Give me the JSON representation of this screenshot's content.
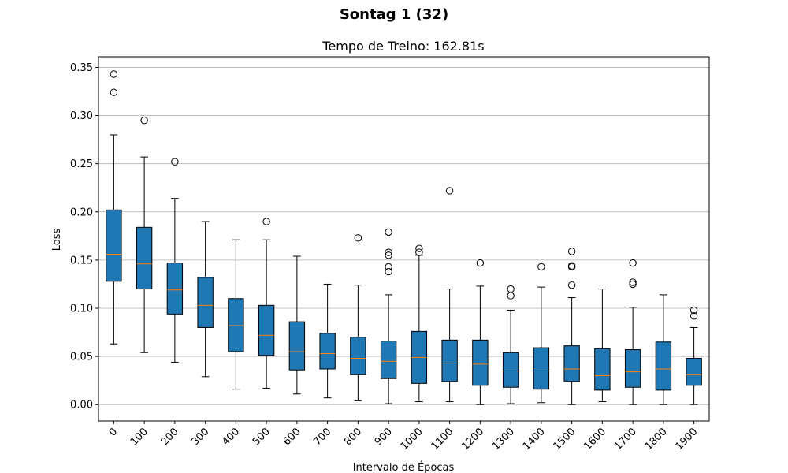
{
  "suptitle": "Sontag 1 (32)",
  "chart_data": {
    "type": "boxplot",
    "title": "Tempo de Treino: 162.81s",
    "xlabel": "Intervalo de Épocas",
    "ylabel": "Loss",
    "ylim": [
      -0.017,
      0.361
    ],
    "yticks": [
      "0.00",
      "0.05",
      "0.10",
      "0.15",
      "0.20",
      "0.25",
      "0.30",
      "0.35"
    ],
    "grid": "y",
    "colors": {
      "box": "#1f77b4",
      "median": "#ff7f0e",
      "edge": "#000000",
      "grid": "#b0b0b0"
    },
    "categories": [
      "0",
      "100",
      "200",
      "300",
      "400",
      "500",
      "600",
      "700",
      "800",
      "900",
      "1000",
      "1100",
      "1200",
      "1300",
      "1400",
      "1500",
      "1600",
      "1700",
      "1800",
      "1900"
    ],
    "boxes": [
      {
        "whislo": 0.063,
        "q1": 0.128,
        "med": 0.156,
        "q3": 0.202,
        "whishi": 0.28,
        "fliers": [
          0.343,
          0.324
        ]
      },
      {
        "whislo": 0.054,
        "q1": 0.12,
        "med": 0.146,
        "q3": 0.184,
        "whishi": 0.257,
        "fliers": [
          0.295
        ]
      },
      {
        "whislo": 0.044,
        "q1": 0.094,
        "med": 0.119,
        "q3": 0.147,
        "whishi": 0.214,
        "fliers": [
          0.252
        ]
      },
      {
        "whislo": 0.029,
        "q1": 0.08,
        "med": 0.103,
        "q3": 0.132,
        "whishi": 0.19,
        "fliers": []
      },
      {
        "whislo": 0.016,
        "q1": 0.055,
        "med": 0.082,
        "q3": 0.11,
        "whishi": 0.171,
        "fliers": []
      },
      {
        "whislo": 0.017,
        "q1": 0.051,
        "med": 0.072,
        "q3": 0.103,
        "whishi": 0.171,
        "fliers": [
          0.19
        ]
      },
      {
        "whislo": 0.011,
        "q1": 0.036,
        "med": 0.055,
        "q3": 0.086,
        "whishi": 0.154,
        "fliers": []
      },
      {
        "whislo": 0.007,
        "q1": 0.037,
        "med": 0.053,
        "q3": 0.074,
        "whishi": 0.125,
        "fliers": []
      },
      {
        "whislo": 0.004,
        "q1": 0.031,
        "med": 0.048,
        "q3": 0.07,
        "whishi": 0.124,
        "fliers": [
          0.173
        ]
      },
      {
        "whislo": 0.001,
        "q1": 0.027,
        "med": 0.045,
        "q3": 0.066,
        "whishi": 0.114,
        "fliers": [
          0.179,
          0.158,
          0.155,
          0.143,
          0.138
        ]
      },
      {
        "whislo": 0.003,
        "q1": 0.022,
        "med": 0.049,
        "q3": 0.076,
        "whishi": 0.155,
        "fliers": [
          0.162,
          0.158
        ]
      },
      {
        "whislo": 0.003,
        "q1": 0.024,
        "med": 0.043,
        "q3": 0.067,
        "whishi": 0.12,
        "fliers": [
          0.222
        ]
      },
      {
        "whislo": 0.0,
        "q1": 0.02,
        "med": 0.042,
        "q3": 0.067,
        "whishi": 0.123,
        "fliers": [
          0.147
        ]
      },
      {
        "whislo": 0.001,
        "q1": 0.018,
        "med": 0.035,
        "q3": 0.054,
        "whishi": 0.098,
        "fliers": [
          0.12,
          0.113
        ]
      },
      {
        "whislo": 0.002,
        "q1": 0.016,
        "med": 0.035,
        "q3": 0.059,
        "whishi": 0.122,
        "fliers": [
          0.143
        ]
      },
      {
        "whislo": 0.0,
        "q1": 0.024,
        "med": 0.037,
        "q3": 0.061,
        "whishi": 0.111,
        "fliers": [
          0.159,
          0.144,
          0.143,
          0.124
        ]
      },
      {
        "whislo": 0.003,
        "q1": 0.015,
        "med": 0.03,
        "q3": 0.058,
        "whishi": 0.12,
        "fliers": []
      },
      {
        "whislo": 0.0,
        "q1": 0.018,
        "med": 0.034,
        "q3": 0.057,
        "whishi": 0.101,
        "fliers": [
          0.147,
          0.127,
          0.125
        ]
      },
      {
        "whislo": 0.0,
        "q1": 0.015,
        "med": 0.037,
        "q3": 0.065,
        "whishi": 0.114,
        "fliers": []
      },
      {
        "whislo": 0.0,
        "q1": 0.02,
        "med": 0.031,
        "q3": 0.048,
        "whishi": 0.08,
        "fliers": [
          0.098,
          0.092
        ]
      }
    ]
  }
}
